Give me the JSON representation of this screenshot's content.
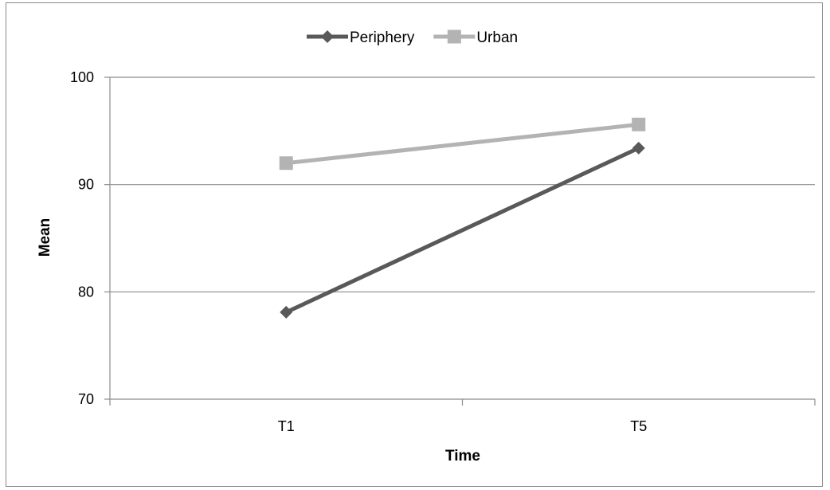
{
  "chart_data": {
    "type": "line",
    "categories": [
      "T1",
      "T5"
    ],
    "series": [
      {
        "name": "Periphery",
        "values": [
          78.1,
          93.4
        ],
        "color": "#595959",
        "marker": "diamond"
      },
      {
        "name": "Urban",
        "values": [
          92.0,
          95.6
        ],
        "color": "#b3b3b3",
        "marker": "square"
      }
    ],
    "xlabel": "Time",
    "ylabel": "Mean",
    "ylim": [
      70,
      100
    ],
    "yticks": [
      70,
      80,
      90,
      100
    ],
    "grid": true,
    "legend_position": "top"
  }
}
